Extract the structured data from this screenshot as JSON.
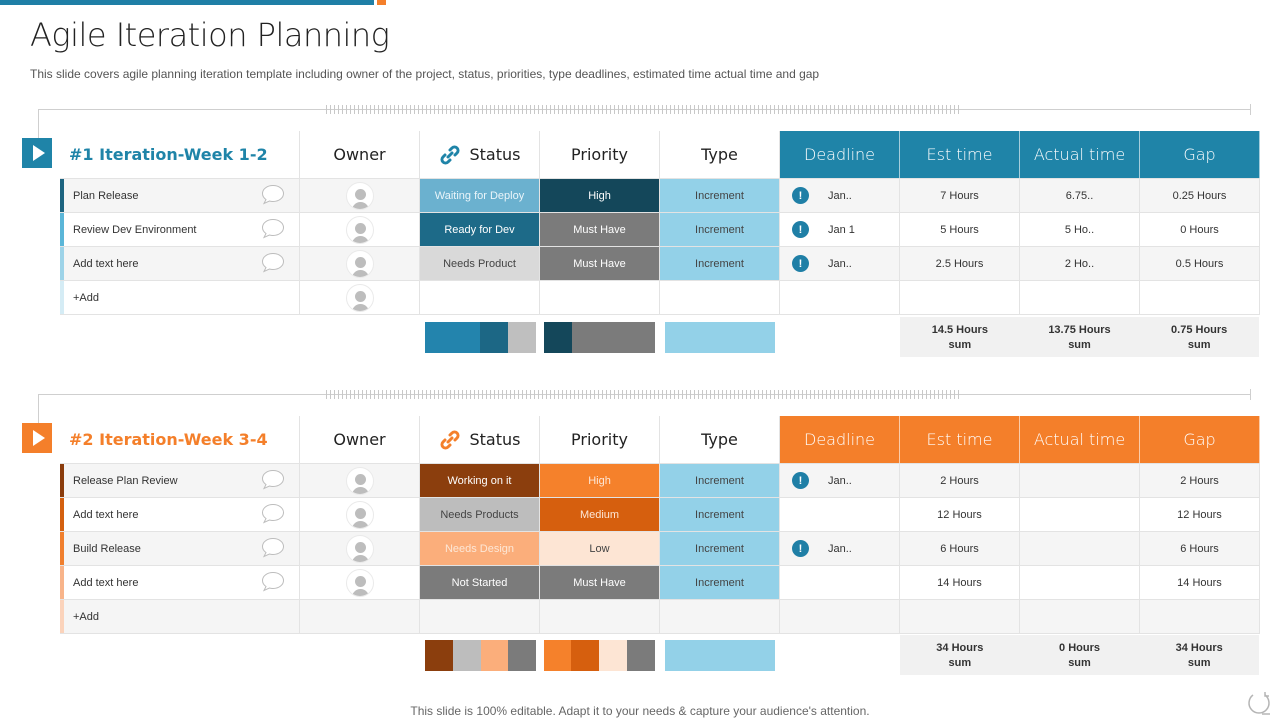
{
  "page": {
    "title": "Agile Iteration Planning",
    "subtitle": "This slide covers agile planning iteration template including owner of the project, status, priorities, type deadlines, estimated time actual time and gap",
    "footer": "This slide is 100% editable. Adapt it to your needs & capture your audience's attention."
  },
  "colors": {
    "blue_accent": "#1f7fa6",
    "orange_accent": "#f47f2a",
    "type_blue": "#93d1e8"
  },
  "iterations": [
    {
      "title": "#1 Iteration-Week  1-2",
      "accent": "#1f84a8",
      "headers": {
        "owner": "Owner",
        "status": "Status",
        "priority": "Priority",
        "type": "Type",
        "deadline": "Deadline",
        "est": "Est time",
        "actual": "Actual time",
        "gap": "Gap"
      },
      "rows": [
        {
          "task": "Plan  Release",
          "bar": "#1d6480",
          "status": "Waiting  for Deploy",
          "status_bg": "#6bb1cf",
          "status_fg": "#eaf5fa",
          "priority": "High",
          "priority_bg": "#14475a",
          "priority_fg": "#ffffff",
          "type": "Increment",
          "deadline": "Jan..",
          "has_alert": true,
          "est": "7 Hours",
          "actual": "6.75..",
          "gap": "0.25 Hours"
        },
        {
          "task": "Review Dev Environment",
          "bar": "#5bb6d8",
          "status": "Ready  for Dev",
          "status_bg": "#1d6a88",
          "status_fg": "#ffffff",
          "priority": "Must Have",
          "priority_bg": "#7b7b7b",
          "priority_fg": "#ffffff",
          "type": "Increment",
          "deadline": "Jan 1",
          "has_alert": true,
          "est": "5 Hours",
          "actual": "5 Ho..",
          "gap": "0 Hours"
        },
        {
          "task": "Add text here",
          "bar": "#9dd3e8",
          "status": "Needs Product",
          "status_bg": "#d9d9d9",
          "status_fg": "#444444",
          "priority": "Must Have",
          "priority_bg": "#7b7b7b",
          "priority_fg": "#ffffff",
          "type": "Increment",
          "deadline": "Jan..",
          "has_alert": true,
          "est": "2.5 Hours",
          "actual": "2 Ho..",
          "gap": "0.5 Hours"
        },
        {
          "task": "+Add",
          "bar": "#d5ecf5",
          "status": "",
          "status_bg": "",
          "status_fg": "",
          "priority": "",
          "priority_bg": "",
          "priority_fg": "",
          "type": "",
          "deadline": "",
          "has_alert": false,
          "est": "",
          "actual": "",
          "gap": "",
          "add_row": true,
          "avatar": true
        }
      ],
      "legend_status": [
        "#2384ad",
        "#1c6785",
        "#bfbfbf"
      ],
      "legend_status_w": [
        55,
        28,
        28
      ],
      "legend_priority": [
        "#14475a",
        "#7b7b7b"
      ],
      "legend_priority_w": [
        28,
        83
      ],
      "legend_type": [
        "#93d1e8"
      ],
      "sums": [
        {
          "value": "14.5 Hours",
          "label": "sum"
        },
        {
          "value": "13.75 Hours",
          "label": "sum"
        },
        {
          "value": "0.75 Hours",
          "label": "sum"
        }
      ]
    },
    {
      "title": "#2 Iteration-Week  3-4",
      "accent": "#f47f2a",
      "headers": {
        "owner": "Owner",
        "status": "Status",
        "priority": "Priority",
        "type": "Type",
        "deadline": "Deadline",
        "est": "Est time",
        "actual": "Actual time",
        "gap": "Gap"
      },
      "rows": [
        {
          "task": "Release Plan  Review",
          "bar": "#8a3c0c",
          "status": "Working on it",
          "status_bg": "#8b3e0d",
          "status_fg": "#ffffff",
          "priority": "High",
          "priority_bg": "#f5812b",
          "priority_fg": "#fde7d6",
          "type": "Increment",
          "deadline": "Jan..",
          "has_alert": true,
          "est": "2 Hours",
          "actual": "",
          "gap": "2 Hours"
        },
        {
          "task": "Add text here",
          "bar": "#d4600f",
          "status": "Needs Products",
          "status_bg": "#bdbdbd",
          "status_fg": "#444444",
          "priority": "Medium",
          "priority_bg": "#d65f0e",
          "priority_fg": "#fde7d6",
          "type": "Increment",
          "deadline": "",
          "has_alert": false,
          "est": "12 Hours",
          "actual": "",
          "gap": "12 Hours"
        },
        {
          "task": "Build  Release",
          "bar": "#f07f2e",
          "status": "Needs Design",
          "status_bg": "#fbae7b",
          "status_fg": "#fde7d6",
          "priority": "Low",
          "priority_bg": "#fde5d4",
          "priority_fg": "#444444",
          "type": "Increment",
          "deadline": "Jan..",
          "has_alert": true,
          "est": "6 Hours",
          "actual": "",
          "gap": "6 Hours"
        },
        {
          "task": "Add text here",
          "bar": "#f8b48a",
          "status": "Not Started",
          "status_bg": "#7b7b7b",
          "status_fg": "#ffffff",
          "priority": "Must Have",
          "priority_bg": "#7b7b7b",
          "priority_fg": "#ffffff",
          "type": "Increment",
          "deadline": "",
          "has_alert": false,
          "est": "14 Hours",
          "actual": "",
          "gap": "14 Hours"
        },
        {
          "task": "+Add",
          "bar": "#fbd3bb",
          "status": "",
          "status_bg": "",
          "status_fg": "",
          "priority": "",
          "priority_bg": "",
          "priority_fg": "",
          "type": "",
          "deadline": "",
          "has_alert": false,
          "est": "",
          "actual": "",
          "gap": "",
          "add_row": true,
          "avatar": false
        }
      ],
      "legend_status": [
        "#8b3e0d",
        "#bdbdbd",
        "#fbae7b",
        "#7b7b7b"
      ],
      "legend_status_w": [
        28,
        28,
        27,
        28
      ],
      "legend_priority": [
        "#f5812b",
        "#d65f0e",
        "#fde5d4",
        "#7b7b7b"
      ],
      "legend_priority_w": [
        27,
        28,
        28,
        28
      ],
      "legend_type": [
        "#93d1e8"
      ],
      "sums": [
        {
          "value": "34 Hours",
          "label": "sum"
        },
        {
          "value": "0 Hours",
          "label": "sum"
        },
        {
          "value": "34 Hours",
          "label": "sum"
        }
      ]
    }
  ]
}
